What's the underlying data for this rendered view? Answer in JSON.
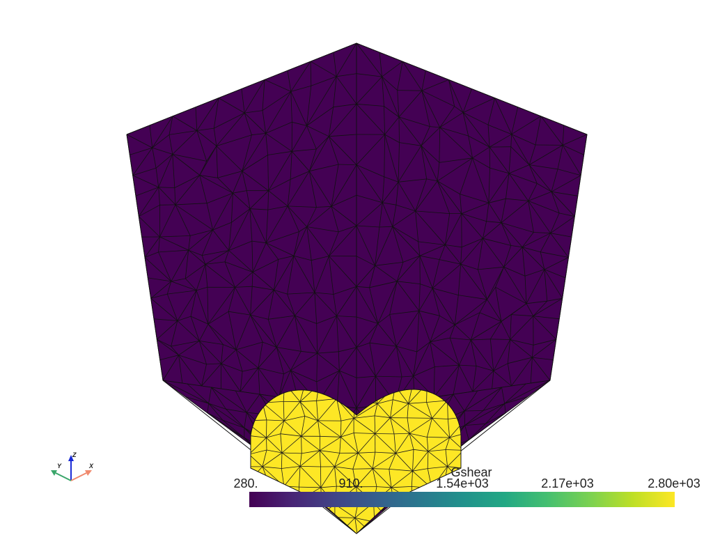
{
  "scene": {
    "background_color": "#ffffff",
    "mesh_color": "#440154",
    "inclusion_color": "#fde725",
    "edge_color": "#111111"
  },
  "axes_widget": {
    "x_label": "X",
    "y_label": "Y",
    "z_label": "Z",
    "x_color": "#f08a6e",
    "y_color": "#3aa66a",
    "z_color": "#1a2bd6"
  },
  "scalar_bar": {
    "title": "Gshear",
    "ticks": [
      "280.",
      "910.",
      "1.54e+03",
      "2.17e+03",
      "2.80e+03"
    ],
    "colormap": "viridis",
    "range": [
      280,
      2800
    ]
  }
}
